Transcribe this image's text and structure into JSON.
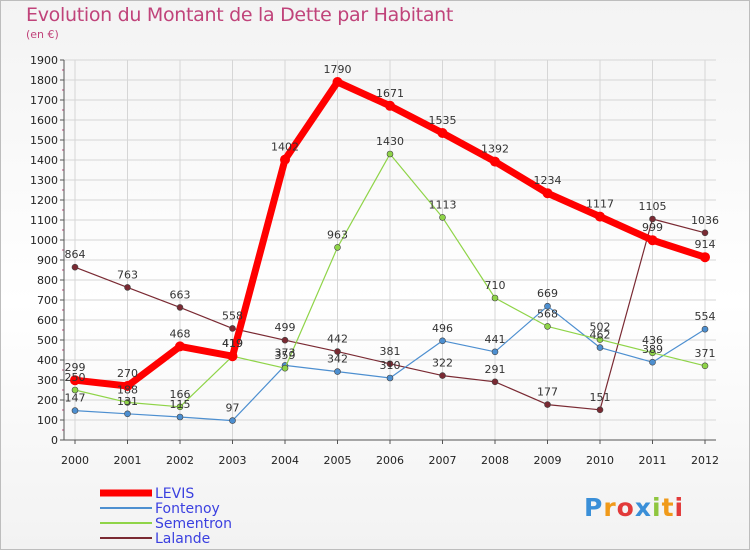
{
  "chart_data": {
    "type": "line",
    "title": "Evolution du Montant de la Dette par Habitant",
    "unit": "(en €)",
    "x": [
      "2000",
      "2001",
      "2002",
      "2003",
      "2004",
      "2005",
      "2006",
      "2007",
      "2008",
      "2009",
      "2010",
      "2011",
      "2012"
    ],
    "ylim": [
      0,
      1900
    ],
    "yticks": [
      0,
      100,
      200,
      300,
      400,
      500,
      600,
      700,
      800,
      900,
      1000,
      1100,
      1200,
      1300,
      1400,
      1500,
      1600,
      1700,
      1800,
      1900
    ],
    "grid": true,
    "legend_position": "bottom-left",
    "series": [
      {
        "name": "LEVIS",
        "color": "#ff0000",
        "values": [
          299,
          270,
          468,
          419,
          1402,
          1790,
          1671,
          1535,
          1392,
          1234,
          1117,
          999,
          914
        ]
      },
      {
        "name": "Fontenoy",
        "color": "#4d8fd0",
        "values": [
          147,
          131,
          115,
          97,
          373,
          342,
          310,
          496,
          441,
          669,
          462,
          389,
          554
        ]
      },
      {
        "name": "Sementron",
        "color": "#8fd448",
        "values": [
          250,
          188,
          166,
          419,
          359,
          963,
          1430,
          1113,
          710,
          568,
          502,
          436,
          371
        ]
      },
      {
        "name": "Lalande",
        "color": "#7a2a33",
        "values": [
          864,
          763,
          663,
          558,
          499,
          442,
          381,
          322,
          291,
          177,
          151,
          1105,
          1036
        ]
      }
    ]
  },
  "logo": {
    "text": "Proxiti"
  }
}
